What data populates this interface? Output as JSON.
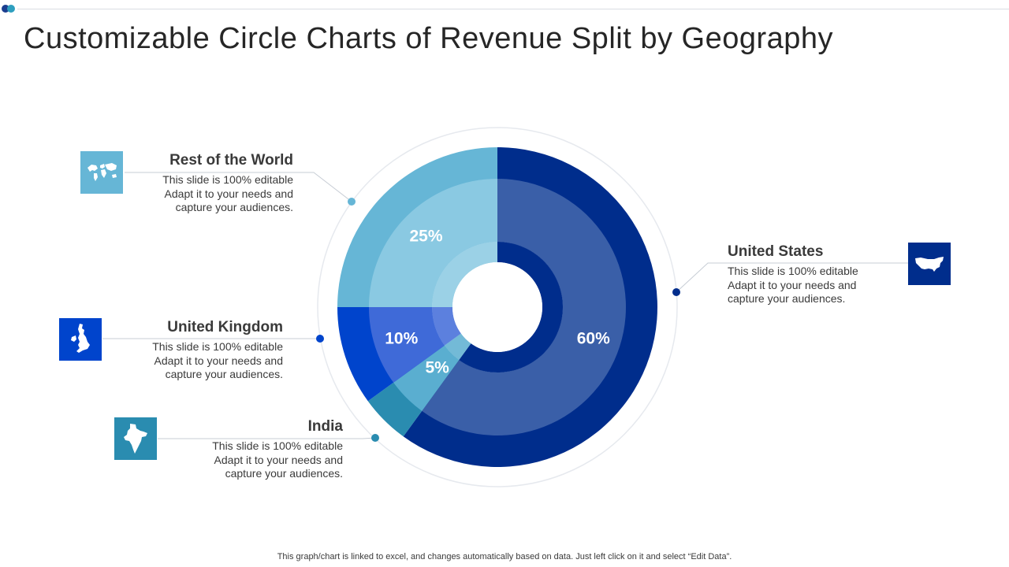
{
  "slide": {
    "title": "Customizable Circle Charts of Revenue Split by Geography",
    "footer": "This graph/chart is linked to excel, and changes automatically based on data. Just left click on it and select “Edit Data”."
  },
  "colors": {
    "united_states": "#002d8c",
    "united_states_inner": "#3a5fa8",
    "india": "#2a8cb0",
    "india_inner": "#5aaed0",
    "united_kingdom": "#0044cc",
    "united_kingdom_inner": "#3f6ad8",
    "rest_of_world": "#66b6d6",
    "rest_of_world_inner": "#8ac9e2",
    "title": "#262626",
    "text": "#3a3a3a"
  },
  "labels": {
    "rest_of_world": {
      "heading": "Rest of the World",
      "line1": "This slide is 100% editable",
      "line2": "Adapt it to your needs and",
      "line3": "capture your audiences.",
      "icon": "world-map-icon"
    },
    "united_states": {
      "heading": "United States",
      "line1": "This slide is 100% editable",
      "line2": "Adapt it to your needs and",
      "line3": "capture your audiences.",
      "icon": "usa-map-icon"
    },
    "united_kingdom": {
      "heading": "United Kingdom",
      "line1": "This slide is 100% editable",
      "line2": "Adapt it to your needs and",
      "line3": "capture your audiences.",
      "icon": "uk-map-icon"
    },
    "india": {
      "heading": "India",
      "line1": "This slide is 100% editable",
      "line2": "Adapt it to your needs and",
      "line3": "capture your audiences.",
      "icon": "india-map-icon"
    }
  },
  "chart_data": {
    "type": "pie",
    "title": "Revenue Split by Geography",
    "categories": [
      "United States",
      "India",
      "United Kingdom",
      "Rest of the World"
    ],
    "values": [
      60,
      5,
      10,
      25
    ],
    "data_labels": [
      "60%",
      "5%",
      "10%",
      "25%"
    ],
    "legend": "none",
    "direction": "clockwise from top"
  }
}
